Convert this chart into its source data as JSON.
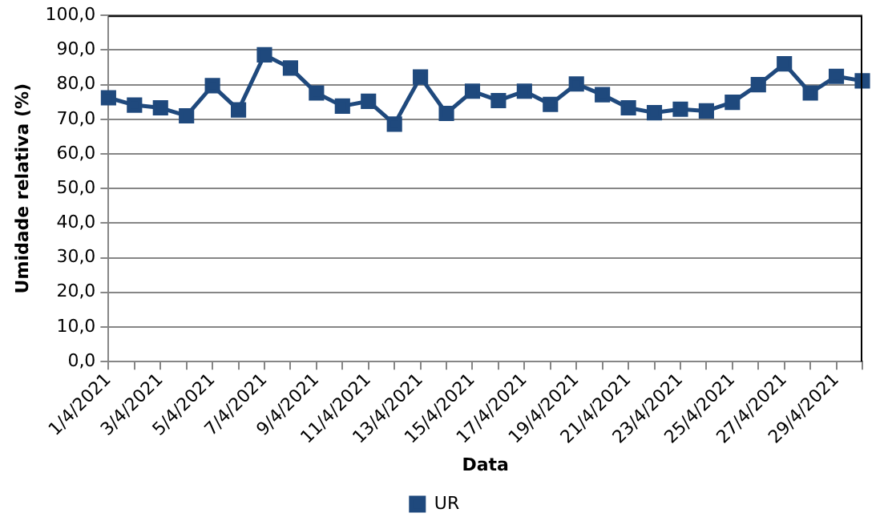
{
  "chart_data": {
    "type": "line",
    "xlabel": "Data",
    "ylabel": "Umidade relativa (%)",
    "categories": [
      "1/4/2021",
      null,
      "3/4/2021",
      null,
      "5/4/2021",
      null,
      "7/4/2021",
      null,
      "9/4/2021",
      null,
      "11/4/2021",
      null,
      "13/4/2021",
      null,
      "15/4/2021",
      null,
      "17/4/2021",
      null,
      "19/4/2021",
      null,
      "21/4/2021",
      null,
      "23/4/2021",
      null,
      "25/4/2021",
      null,
      "27/4/2021",
      null,
      "29/4/2021",
      null
    ],
    "series": [
      {
        "name": "UR",
        "color": "#1f497d",
        "values": [
          76.2,
          74.1,
          73.3,
          71.0,
          79.7,
          72.7,
          88.6,
          84.8,
          77.6,
          73.8,
          75.2,
          68.6,
          82.2,
          71.7,
          78.1,
          75.4,
          78.1,
          74.3,
          80.2,
          77.1,
          73.3,
          71.9,
          72.9,
          72.4,
          74.9,
          80.0,
          86.0,
          77.6,
          82.4,
          81.1
        ]
      }
    ],
    "ylim": [
      0,
      100
    ],
    "yticks": [
      {
        "value": 0,
        "label": "0,0"
      },
      {
        "value": 10,
        "label": "10,0"
      },
      {
        "value": 20,
        "label": "20,0"
      },
      {
        "value": 30,
        "label": "30,0"
      },
      {
        "value": 40,
        "label": "40,0"
      },
      {
        "value": 50,
        "label": "50,0"
      },
      {
        "value": 60,
        "label": "60,0"
      },
      {
        "value": 70,
        "label": "70,0"
      },
      {
        "value": 80,
        "label": "80,0"
      },
      {
        "value": 90,
        "label": "90,0"
      },
      {
        "value": 100,
        "label": "100,0"
      }
    ],
    "grid": "y",
    "legend": "bottom",
    "marker": "square",
    "line_style": "solid"
  }
}
